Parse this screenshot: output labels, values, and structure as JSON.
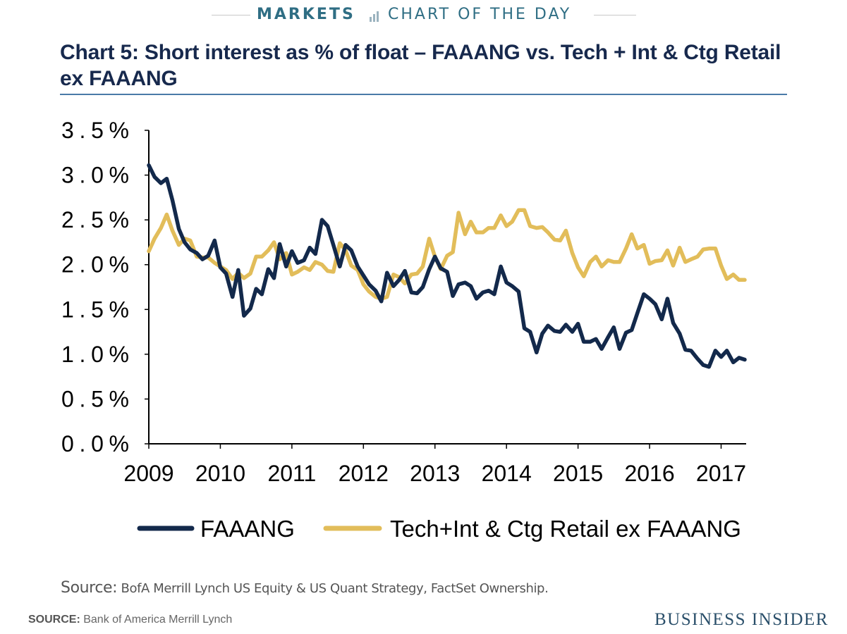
{
  "header": {
    "section": "MARKETS",
    "feature": "CHART OF THE DAY",
    "accent_color": "#2f6e84"
  },
  "chart_title_lines": [
    "Chart 5: Short interest as % of float – FAAANG vs. Tech + Int & Ctg Retail",
    "ex FAAANG"
  ],
  "chart_data": {
    "type": "line",
    "title": "Chart 5: Short interest as % of float – FAAANG vs. Tech + Int & Ctg Retail ex FAAANG",
    "xlabel": "",
    "ylabel": "",
    "xlim": [
      2009,
      2017.35
    ],
    "ylim": [
      0,
      3.5
    ],
    "x_ticks": [
      2009,
      2010,
      2011,
      2012,
      2013,
      2014,
      2015,
      2016,
      2017
    ],
    "x_tick_labels": [
      "2009",
      "2010",
      "2011",
      "2012",
      "2013",
      "2014",
      "2015",
      "2016",
      "2017"
    ],
    "y_ticks": [
      0,
      0.5,
      1.0,
      1.5,
      2.0,
      2.5,
      3.0,
      3.5
    ],
    "y_tick_labels": [
      "0.0%",
      "0.5%",
      "1.0%",
      "1.5%",
      "2.0%",
      "2.5%",
      "3.0%",
      "3.5%"
    ],
    "grid": false,
    "legend_position": "bottom",
    "series": [
      {
        "name": "FAAANG",
        "color": "#13294b",
        "points": [
          [
            2009.0,
            3.11
          ],
          [
            2009.08,
            2.98
          ],
          [
            2009.17,
            2.91
          ],
          [
            2009.25,
            2.96
          ],
          [
            2009.33,
            2.72
          ],
          [
            2009.42,
            2.4
          ],
          [
            2009.5,
            2.25
          ],
          [
            2009.58,
            2.17
          ],
          [
            2009.67,
            2.13
          ],
          [
            2009.75,
            2.06
          ],
          [
            2009.83,
            2.1
          ],
          [
            2009.92,
            2.27
          ],
          [
            2010.0,
            1.97
          ],
          [
            2010.08,
            1.9
          ],
          [
            2010.17,
            1.64
          ],
          [
            2010.25,
            1.94
          ],
          [
            2010.33,
            1.43
          ],
          [
            2010.42,
            1.51
          ],
          [
            2010.5,
            1.73
          ],
          [
            2010.58,
            1.67
          ],
          [
            2010.67,
            1.95
          ],
          [
            2010.75,
            1.85
          ],
          [
            2010.83,
            2.23
          ],
          [
            2010.92,
            1.98
          ],
          [
            2011.0,
            2.15
          ],
          [
            2011.08,
            2.02
          ],
          [
            2011.17,
            2.05
          ],
          [
            2011.25,
            2.19
          ],
          [
            2011.33,
            2.12
          ],
          [
            2011.42,
            2.5
          ],
          [
            2011.5,
            2.43
          ],
          [
            2011.58,
            2.22
          ],
          [
            2011.67,
            1.98
          ],
          [
            2011.75,
            2.22
          ],
          [
            2011.83,
            2.16
          ],
          [
            2011.92,
            1.98
          ],
          [
            2012.0,
            1.88
          ],
          [
            2012.08,
            1.78
          ],
          [
            2012.17,
            1.71
          ],
          [
            2012.25,
            1.59
          ],
          [
            2012.33,
            1.91
          ],
          [
            2012.42,
            1.76
          ],
          [
            2012.5,
            1.83
          ],
          [
            2012.58,
            1.93
          ],
          [
            2012.67,
            1.69
          ],
          [
            2012.75,
            1.68
          ],
          [
            2012.83,
            1.75
          ],
          [
            2012.92,
            1.95
          ],
          [
            2013.0,
            2.09
          ],
          [
            2013.08,
            1.96
          ],
          [
            2013.17,
            1.92
          ],
          [
            2013.25,
            1.65
          ],
          [
            2013.33,
            1.78
          ],
          [
            2013.42,
            1.8
          ],
          [
            2013.5,
            1.76
          ],
          [
            2013.58,
            1.62
          ],
          [
            2013.67,
            1.69
          ],
          [
            2013.75,
            1.71
          ],
          [
            2013.83,
            1.67
          ],
          [
            2013.92,
            1.98
          ],
          [
            2014.0,
            1.8
          ],
          [
            2014.08,
            1.76
          ],
          [
            2014.17,
            1.7
          ],
          [
            2014.25,
            1.29
          ],
          [
            2014.33,
            1.25
          ],
          [
            2014.42,
            1.02
          ],
          [
            2014.5,
            1.23
          ],
          [
            2014.58,
            1.32
          ],
          [
            2014.67,
            1.26
          ],
          [
            2014.75,
            1.25
          ],
          [
            2014.83,
            1.33
          ],
          [
            2014.92,
            1.25
          ],
          [
            2015.0,
            1.34
          ],
          [
            2015.08,
            1.14
          ],
          [
            2015.17,
            1.14
          ],
          [
            2015.25,
            1.17
          ],
          [
            2015.33,
            1.06
          ],
          [
            2015.42,
            1.19
          ],
          [
            2015.5,
            1.3
          ],
          [
            2015.58,
            1.06
          ],
          [
            2015.67,
            1.24
          ],
          [
            2015.75,
            1.27
          ],
          [
            2015.83,
            1.46
          ],
          [
            2015.92,
            1.67
          ],
          [
            2016.0,
            1.62
          ],
          [
            2016.08,
            1.56
          ],
          [
            2016.17,
            1.39
          ],
          [
            2016.25,
            1.62
          ],
          [
            2016.33,
            1.35
          ],
          [
            2016.42,
            1.23
          ],
          [
            2016.5,
            1.05
          ],
          [
            2016.58,
            1.04
          ],
          [
            2016.67,
            0.95
          ],
          [
            2016.75,
            0.88
          ],
          [
            2016.83,
            0.86
          ],
          [
            2016.92,
            1.04
          ],
          [
            2017.0,
            0.97
          ],
          [
            2017.08,
            1.04
          ],
          [
            2017.17,
            0.91
          ],
          [
            2017.25,
            0.96
          ],
          [
            2017.33,
            0.94
          ]
        ]
      },
      {
        "name": "Tech+Int & Ctg Retail ex FAAANG",
        "color": "#e2bd5a",
        "points": [
          [
            2009.0,
            2.15
          ],
          [
            2009.08,
            2.29
          ],
          [
            2009.17,
            2.41
          ],
          [
            2009.25,
            2.56
          ],
          [
            2009.33,
            2.38
          ],
          [
            2009.42,
            2.22
          ],
          [
            2009.5,
            2.29
          ],
          [
            2009.58,
            2.27
          ],
          [
            2009.67,
            2.09
          ],
          [
            2009.75,
            2.08
          ],
          [
            2009.83,
            2.08
          ],
          [
            2009.92,
            2.02
          ],
          [
            2010.0,
            1.98
          ],
          [
            2010.08,
            1.94
          ],
          [
            2010.17,
            1.84
          ],
          [
            2010.25,
            1.91
          ],
          [
            2010.33,
            1.85
          ],
          [
            2010.42,
            1.9
          ],
          [
            2010.5,
            2.09
          ],
          [
            2010.58,
            2.09
          ],
          [
            2010.67,
            2.16
          ],
          [
            2010.75,
            2.25
          ],
          [
            2010.83,
            2.06
          ],
          [
            2010.92,
            2.13
          ],
          [
            2011.0,
            1.89
          ],
          [
            2011.08,
            1.92
          ],
          [
            2011.17,
            1.97
          ],
          [
            2011.25,
            1.94
          ],
          [
            2011.33,
            2.03
          ],
          [
            2011.42,
            2.0
          ],
          [
            2011.5,
            1.93
          ],
          [
            2011.58,
            1.92
          ],
          [
            2011.67,
            2.24
          ],
          [
            2011.75,
            2.16
          ],
          [
            2011.83,
            1.99
          ],
          [
            2011.92,
            1.94
          ],
          [
            2012.0,
            1.78
          ],
          [
            2012.08,
            1.7
          ],
          [
            2012.17,
            1.64
          ],
          [
            2012.25,
            1.62
          ],
          [
            2012.33,
            1.64
          ],
          [
            2012.42,
            1.89
          ],
          [
            2012.5,
            1.86
          ],
          [
            2012.58,
            1.79
          ],
          [
            2012.67,
            1.89
          ],
          [
            2012.75,
            1.9
          ],
          [
            2012.83,
            1.98
          ],
          [
            2012.92,
            2.29
          ],
          [
            2013.0,
            2.09
          ],
          [
            2013.08,
            1.95
          ],
          [
            2013.17,
            2.1
          ],
          [
            2013.25,
            2.14
          ],
          [
            2013.33,
            2.58
          ],
          [
            2013.42,
            2.34
          ],
          [
            2013.5,
            2.48
          ],
          [
            2013.58,
            2.36
          ],
          [
            2013.67,
            2.36
          ],
          [
            2013.75,
            2.41
          ],
          [
            2013.83,
            2.41
          ],
          [
            2013.92,
            2.55
          ],
          [
            2014.0,
            2.43
          ],
          [
            2014.08,
            2.48
          ],
          [
            2014.17,
            2.61
          ],
          [
            2014.25,
            2.61
          ],
          [
            2014.33,
            2.43
          ],
          [
            2014.42,
            2.41
          ],
          [
            2014.5,
            2.42
          ],
          [
            2014.58,
            2.36
          ],
          [
            2014.67,
            2.28
          ],
          [
            2014.75,
            2.27
          ],
          [
            2014.83,
            2.38
          ],
          [
            2014.92,
            2.13
          ],
          [
            2015.0,
            1.97
          ],
          [
            2015.08,
            1.87
          ],
          [
            2015.17,
            2.03
          ],
          [
            2015.25,
            2.09
          ],
          [
            2015.33,
            1.98
          ],
          [
            2015.42,
            2.05
          ],
          [
            2015.5,
            2.03
          ],
          [
            2015.58,
            2.03
          ],
          [
            2015.67,
            2.18
          ],
          [
            2015.75,
            2.34
          ],
          [
            2015.83,
            2.18
          ],
          [
            2015.92,
            2.22
          ],
          [
            2016.0,
            2.01
          ],
          [
            2016.08,
            2.04
          ],
          [
            2016.17,
            2.05
          ],
          [
            2016.25,
            2.16
          ],
          [
            2016.33,
            1.99
          ],
          [
            2016.42,
            2.19
          ],
          [
            2016.5,
            2.03
          ],
          [
            2016.58,
            2.06
          ],
          [
            2016.67,
            2.09
          ],
          [
            2016.75,
            2.17
          ],
          [
            2016.83,
            2.18
          ],
          [
            2016.92,
            2.18
          ],
          [
            2017.0,
            1.99
          ],
          [
            2017.08,
            1.84
          ],
          [
            2017.17,
            1.89
          ],
          [
            2017.25,
            1.83
          ],
          [
            2017.33,
            1.83
          ]
        ]
      }
    ]
  },
  "source_inner": {
    "lead": "Source:",
    "text": "BofA Merrill Lynch US Equity & US Quant Strategy, FactSet Ownership."
  },
  "footer": {
    "source_label": "SOURCE:",
    "source_text": "Bank of America Merrill Lynch",
    "logo_text": "BUSINESS INSIDER"
  }
}
